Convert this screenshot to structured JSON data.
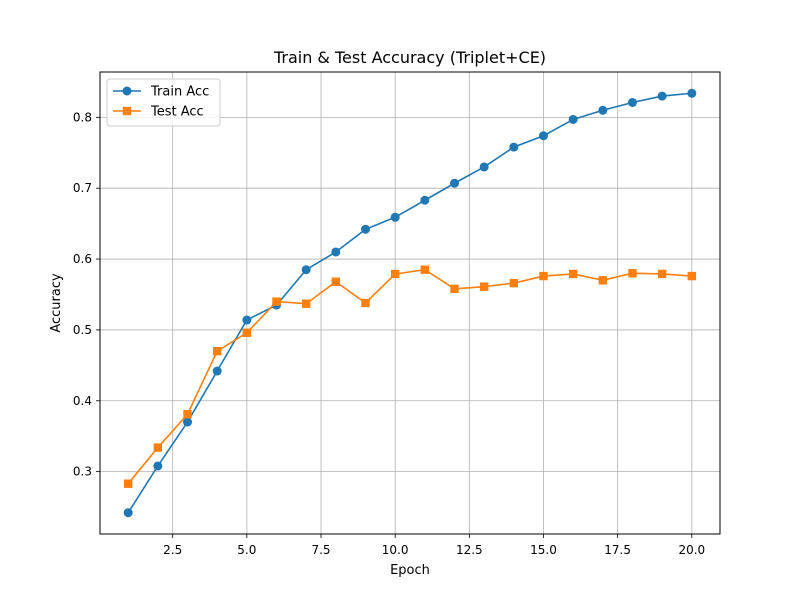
{
  "chart_data": {
    "type": "line",
    "title": "Train & Test Accuracy (Triplet+CE)",
    "xlabel": "Epoch",
    "ylabel": "Accuracy",
    "xlim": [
      0.05,
      20.95
    ],
    "ylim": [
      0.212,
      0.864
    ],
    "xticks": [
      2.5,
      5.0,
      7.5,
      10.0,
      12.5,
      15.0,
      17.5,
      20.0
    ],
    "xtick_labels": [
      "2.5",
      "5.0",
      "7.5",
      "10.0",
      "12.5",
      "15.0",
      "17.5",
      "20.0"
    ],
    "yticks": [
      0.3,
      0.4,
      0.5,
      0.6,
      0.7,
      0.8
    ],
    "ytick_labels": [
      "0.3",
      "0.4",
      "0.5",
      "0.6",
      "0.7",
      "0.8"
    ],
    "grid": true,
    "legend_position": "top-left",
    "x": [
      1,
      2,
      3,
      4,
      5,
      6,
      7,
      8,
      9,
      10,
      11,
      12,
      13,
      14,
      15,
      16,
      17,
      18,
      19,
      20
    ],
    "series": [
      {
        "name": "Train Acc",
        "color": "#1f77b4",
        "marker": "circle",
        "values": [
          0.242,
          0.308,
          0.37,
          0.442,
          0.514,
          0.535,
          0.585,
          0.61,
          0.642,
          0.659,
          0.683,
          0.707,
          0.73,
          0.758,
          0.774,
          0.797,
          0.81,
          0.821,
          0.83,
          0.834
        ]
      },
      {
        "name": "Test Acc",
        "color": "#ff7f0e",
        "marker": "square",
        "values": [
          0.283,
          0.334,
          0.381,
          0.47,
          0.496,
          0.54,
          0.537,
          0.568,
          0.538,
          0.579,
          0.585,
          0.558,
          0.561,
          0.566,
          0.576,
          0.579,
          0.57,
          0.58,
          0.579,
          0.576
        ]
      }
    ]
  }
}
